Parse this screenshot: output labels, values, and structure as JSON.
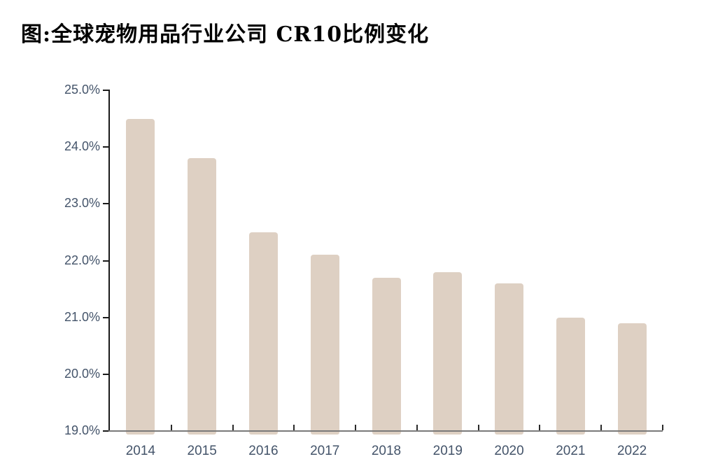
{
  "title": "图:全球宠物用品行业公司 CR10比例变化",
  "chart_data": {
    "type": "bar",
    "title": "图:全球宠物用品行业公司 CR10比例变化",
    "categories": [
      "2014",
      "2015",
      "2016",
      "2017",
      "2018",
      "2019",
      "2020",
      "2021",
      "2022"
    ],
    "values": [
      24.5,
      23.8,
      22.5,
      22.1,
      21.7,
      21.8,
      21.6,
      21.0,
      20.9
    ],
    "unit": "%",
    "xlabel": "",
    "ylabel": "",
    "ylim": [
      19.0,
      25.0
    ],
    "y_tick_step": 1.0,
    "y_tick_labels": [
      "19.0%",
      "20.0%",
      "21.0%",
      "22.0%",
      "23.0%",
      "24.0%",
      "25.0%"
    ],
    "grid": false,
    "legend": "none",
    "colors": {
      "bar_fill": "#ded0c3",
      "tick_label": "#44546a",
      "y_axis_line": "#1a1a1a",
      "x_axis_line": "#7a7a7a",
      "x_tick_mark": "#2a2a2a",
      "title": "#000000"
    }
  }
}
